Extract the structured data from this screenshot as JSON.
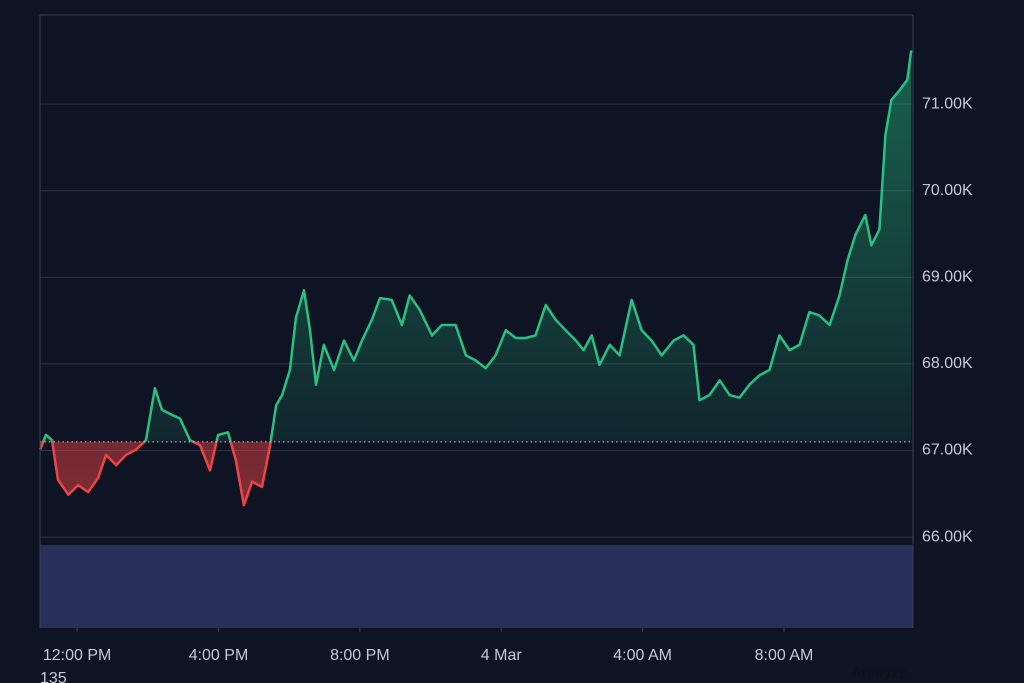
{
  "chart_data": {
    "type": "baseline",
    "x": [
      -1.05,
      -0.88,
      -0.71,
      -0.54,
      -0.25,
      0.03,
      0.31,
      0.59,
      0.82,
      1.1,
      1.39,
      1.67,
      1.95,
      2.2,
      2.4,
      2.69,
      2.91,
      3.19,
      3.48,
      3.76,
      3.99,
      4.27,
      4.49,
      4.72,
      4.95,
      5.23,
      5.46,
      5.63,
      5.8,
      6.02,
      6.19,
      6.42,
      6.59,
      6.76,
      6.98,
      7.27,
      7.55,
      7.83,
      8.06,
      8.34,
      8.57,
      8.9,
      9.19,
      9.41,
      9.7,
      10.04,
      10.32,
      10.71,
      11.0,
      11.28,
      11.56,
      11.84,
      12.13,
      12.41,
      12.69,
      12.97,
      13.26,
      13.54,
      13.82,
      14.11,
      14.33,
      14.56,
      14.78,
      15.07,
      15.35,
      15.69,
      15.97,
      16.25,
      16.54,
      16.88,
      17.16,
      17.44,
      17.61,
      17.89,
      18.18,
      18.46,
      18.74,
      19.02,
      19.31,
      19.59,
      19.87,
      20.16,
      20.44,
      20.72,
      21.0,
      21.29,
      21.57,
      21.8,
      22.02,
      22.3,
      22.47,
      22.7,
      22.87,
      23.04,
      23.27,
      23.49,
      23.6
    ],
    "values": [
      67010,
      67180,
      67120,
      66660,
      66490,
      66600,
      66520,
      66680,
      66950,
      66830,
      66950,
      67010,
      67120,
      67720,
      67470,
      67410,
      67370,
      67120,
      67060,
      66770,
      67180,
      67210,
      66890,
      66370,
      66640,
      66580,
      67060,
      67520,
      67640,
      67930,
      68530,
      68850,
      68390,
      67760,
      68220,
      67930,
      68270,
      68040,
      68270,
      68510,
      68760,
      68740,
      68450,
      68790,
      68620,
      68330,
      68450,
      68450,
      68100,
      68040,
      67950,
      68100,
      68390,
      68300,
      68300,
      68330,
      68680,
      68510,
      68390,
      68270,
      68160,
      68330,
      67990,
      68220,
      68100,
      68740,
      68390,
      68270,
      68100,
      68270,
      68330,
      68220,
      67580,
      67640,
      67810,
      67640,
      67610,
      67760,
      67870,
      67930,
      68330,
      68160,
      68220,
      68600,
      68560,
      68450,
      68790,
      69200,
      69490,
      69720,
      69370,
      69550,
      70640,
      71050,
      71160,
      71280,
      71620
    ],
    "baseline": 67100,
    "up_color": "#27c281",
    "down_color": "#ef4444",
    "xlim": [
      -1.05,
      23.65
    ],
    "xticks": [
      {
        "value": 0,
        "label": "12:00 PM"
      },
      {
        "value": 4,
        "label": "4:00 PM"
      },
      {
        "value": 8,
        "label": "8:00 PM"
      },
      {
        "value": 12,
        "label": "4 Mar"
      },
      {
        "value": 16,
        "label": "4:00 AM"
      },
      {
        "value": 20,
        "label": "8:00 AM"
      }
    ],
    "ylim": [
      64950,
      72030
    ],
    "yticks": [
      {
        "value": 66000,
        "label": "66.00K"
      },
      {
        "value": 67000,
        "label": "67.00K"
      },
      {
        "value": 68000,
        "label": "68.00K"
      },
      {
        "value": 69000,
        "label": "69.00K"
      },
      {
        "value": 70000,
        "label": "70.00K"
      },
      {
        "value": 71000,
        "label": "71.00K"
      }
    ],
    "grid": true,
    "footer_left": "135",
    "footer_right": "Analyze"
  }
}
